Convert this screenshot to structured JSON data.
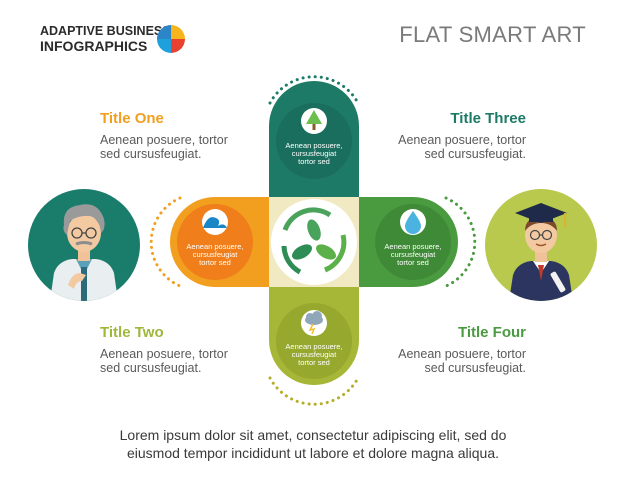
{
  "brand": {
    "line1": "ADAPTIVE BUSINESS",
    "line2": "INFOGRAPHICS"
  },
  "title": "FLAT SMART ART",
  "items": [
    {
      "title": "Title One",
      "desc_line1": "Aenean posuere, tortor",
      "desc_line2": "sed cursusfeugiat.",
      "color": "#f29f1f"
    },
    {
      "title": "Title Two",
      "desc_line1": "Aenean posuere, tortor",
      "desc_line2": "sed cursusfeugiat.",
      "color": "#9db73b"
    },
    {
      "title": "Title Three",
      "desc_line1": "Aenean posuere, tortor",
      "desc_line2": "sed cursusfeugiat.",
      "color": "#1d7a67"
    },
    {
      "title": "Title Four",
      "desc_line1": "Aenean posuere, tortor",
      "desc_line2": "sed cursusfeugiat.",
      "color": "#4a9a3f"
    }
  ],
  "circles": {
    "top": {
      "l1": "Aenean posuere,",
      "l2": "cursusfeugiat",
      "l3": "tortor sed",
      "icon": "tree-icon"
    },
    "left": {
      "l1": "Aenean posuere,",
      "l2": "cursusfeugiat",
      "l3": "tortor sed",
      "icon": "wave-icon"
    },
    "right": {
      "l1": "Aenean posuere,",
      "l2": "cursusfeugiat",
      "l3": "tortor sed",
      "icon": "water-drop-icon"
    },
    "bottom": {
      "l1": "Aenean posuere,",
      "l2": "cursusfeugiat",
      "l3": "tortor sed",
      "icon": "storm-cloud-icon"
    }
  },
  "center_icon": "recycle-leaves-icon",
  "footer": {
    "line1": "Lorem ipsum dolor sit amet, consectetur adipiscing elit, sed do",
    "line2": "eiusmod tempor incididunt ut labore et dolore magna aliqua."
  }
}
